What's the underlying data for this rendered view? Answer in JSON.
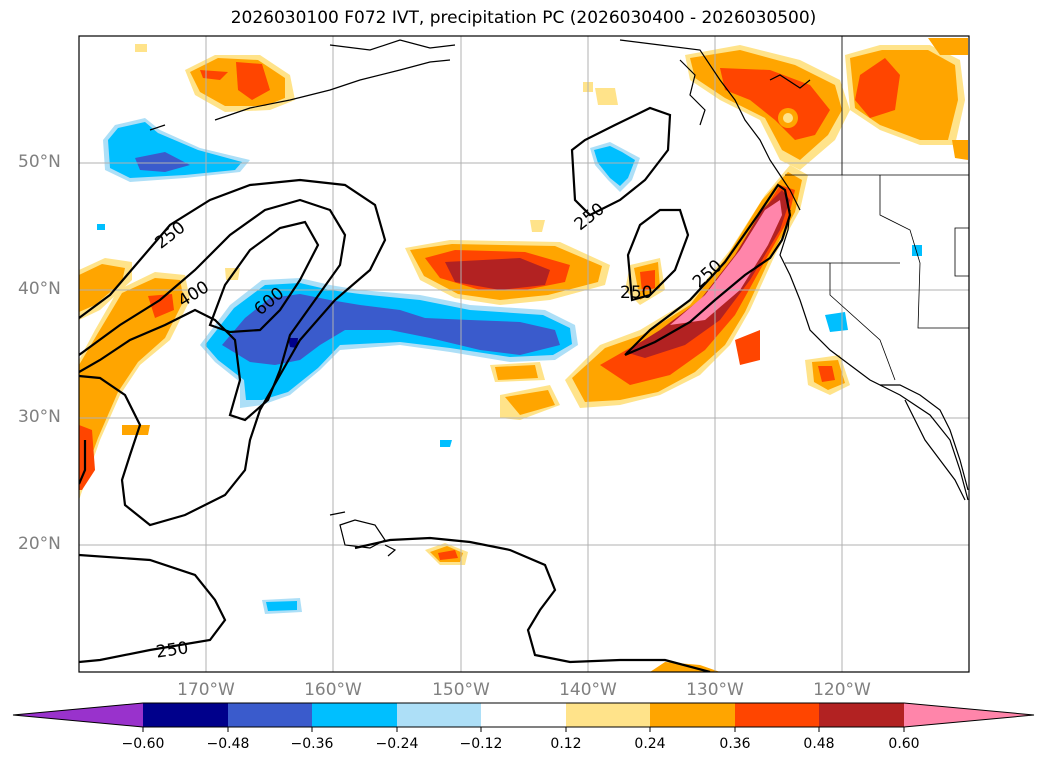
{
  "title": "2026030100 F072 IVT, precipitation PC (2026030400 - 2026030500)",
  "lat_labels": [
    "50°N",
    "40°N",
    "30°N",
    "20°N"
  ],
  "lon_labels": [
    "170°W",
    "160°W",
    "150°W",
    "140°W",
    "130°W",
    "120°W"
  ],
  "contour_labels": [
    "250",
    "400",
    "600",
    "250",
    "250",
    "250",
    "250"
  ],
  "colorbar": {
    "ticks": [
      "−0.60",
      "−0.48",
      "−0.36",
      "−0.24",
      "−0.12",
      "0.12",
      "0.24",
      "0.36",
      "0.48",
      "0.60"
    ],
    "colors": [
      "#9932CC",
      "#00008B",
      "#3A5BCC",
      "#00BFFF",
      "#ADDFF7",
      "#FFFFFF",
      "#FFE38A",
      "#FFA500",
      "#FF4500",
      "#B22222",
      "#FF85AA"
    ]
  },
  "legend_units": "precipitation PC"
}
